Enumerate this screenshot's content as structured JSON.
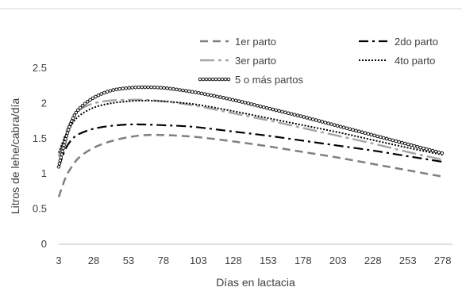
{
  "chart_data": {
    "type": "line",
    "title": "",
    "xlabel": "Días en lactacia",
    "ylabel": "Litros de lehe/cabra/día",
    "xlim": [
      3,
      285
    ],
    "ylim": [
      0,
      2.5
    ],
    "x_ticks": [
      "3",
      "28",
      "53",
      "78",
      "103",
      "128",
      "153",
      "178",
      "203",
      "228",
      "253",
      "278"
    ],
    "y_ticks": [
      "0",
      "0.5",
      "1",
      "1.5",
      "2",
      "2.5"
    ],
    "grid": false,
    "legend_position": "top",
    "series": [
      {
        "name": "1er parto",
        "style": "dashed",
        "color": "#808080",
        "x": [
          3,
          8,
          13,
          18,
          28,
          40,
          53,
          65,
          78,
          90,
          103,
          128,
          153,
          178,
          203,
          228,
          253,
          278
        ],
        "y": [
          0.67,
          0.95,
          1.12,
          1.24,
          1.37,
          1.46,
          1.52,
          1.55,
          1.55,
          1.54,
          1.52,
          1.46,
          1.39,
          1.31,
          1.23,
          1.14,
          1.05,
          0.96
        ]
      },
      {
        "name": "2do parto",
        "style": "dash-dot",
        "color": "#000000",
        "x": [
          3,
          8,
          13,
          18,
          28,
          40,
          53,
          65,
          78,
          90,
          103,
          128,
          153,
          178,
          203,
          228,
          253,
          278
        ],
        "y": [
          1.09,
          1.36,
          1.5,
          1.57,
          1.64,
          1.68,
          1.7,
          1.7,
          1.69,
          1.68,
          1.66,
          1.6,
          1.54,
          1.47,
          1.4,
          1.33,
          1.25,
          1.17
        ]
      },
      {
        "name": "3er parto",
        "style": "long-dash-dot",
        "color": "#a6a6a6",
        "x": [
          3,
          8,
          13,
          18,
          28,
          40,
          53,
          65,
          78,
          90,
          103,
          128,
          153,
          178,
          203,
          228,
          253,
          278
        ],
        "y": [
          1.25,
          1.58,
          1.79,
          1.91,
          2.0,
          2.04,
          2.05,
          2.05,
          2.03,
          2.0,
          1.96,
          1.86,
          1.76,
          1.65,
          1.54,
          1.43,
          1.31,
          1.2
        ]
      },
      {
        "name": "4to parto",
        "style": "dotted",
        "color": "#000000",
        "x": [
          3,
          8,
          13,
          18,
          28,
          40,
          53,
          65,
          78,
          90,
          103,
          128,
          153,
          178,
          203,
          228,
          253,
          278
        ],
        "y": [
          1.3,
          1.55,
          1.72,
          1.83,
          1.94,
          2.0,
          2.03,
          2.04,
          2.03,
          2.01,
          1.98,
          1.89,
          1.79,
          1.69,
          1.59,
          1.48,
          1.37,
          1.27
        ]
      },
      {
        "name": "5 o más partos",
        "style": "dotted-markers",
        "color": "#000000",
        "x": [
          3,
          8,
          13,
          18,
          28,
          40,
          53,
          65,
          78,
          90,
          103,
          128,
          153,
          178,
          203,
          228,
          253,
          278
        ],
        "y": [
          1.1,
          1.5,
          1.78,
          1.93,
          2.08,
          2.18,
          2.22,
          2.23,
          2.22,
          2.19,
          2.15,
          2.05,
          1.93,
          1.81,
          1.68,
          1.55,
          1.42,
          1.29
        ]
      }
    ]
  }
}
